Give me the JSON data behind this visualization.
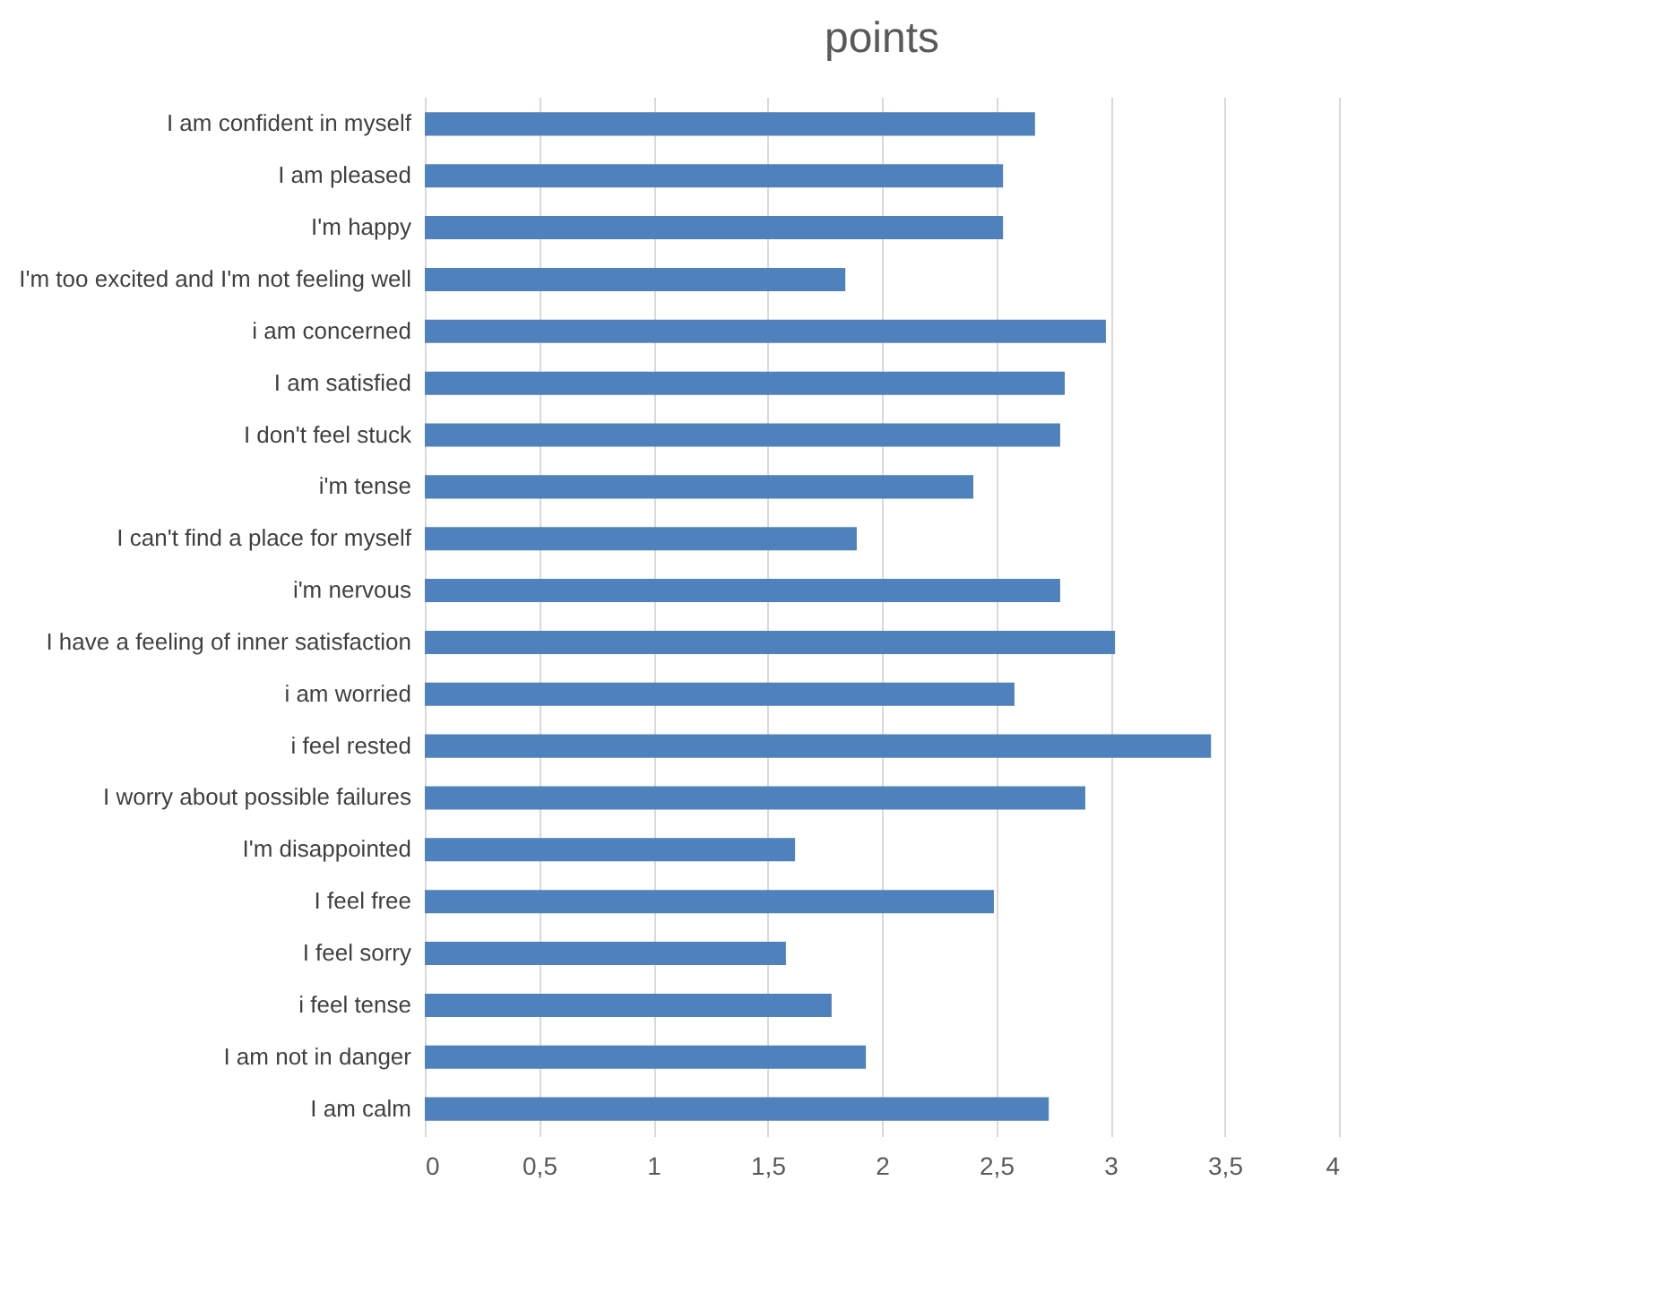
{
  "chart_data": {
    "type": "bar",
    "title": "points",
    "orientation": "horizontal",
    "categories": [
      "I am confident in myself",
      "I am pleased",
      "I'm happy",
      "I'm too excited and I'm not feeling well",
      "i am concerned",
      "I am satisfied",
      "I don't feel stuck",
      "i'm tense",
      "I can't find a place for myself",
      "i'm nervous",
      "I have a feeling of inner satisfaction",
      "i am worried",
      "i feel rested",
      "I worry about possible failures",
      "I'm disappointed",
      "I feel free",
      "I feel sorry",
      "i feel tense",
      "I am not in danger",
      "I am calm"
    ],
    "values": [
      2.67,
      2.53,
      2.53,
      1.84,
      2.98,
      2.8,
      2.78,
      2.4,
      1.89,
      2.78,
      3.02,
      2.58,
      3.44,
      2.89,
      1.62,
      2.49,
      1.58,
      1.78,
      1.93,
      2.73
    ],
    "color": "#4f81bd",
    "xlim": [
      0,
      4
    ],
    "xticks": [
      0,
      {
        "value": 0.5,
        "label": "0,5"
      },
      1,
      {
        "value": 1.5,
        "label": "1,5"
      },
      2,
      {
        "value": 2.5,
        "label": "2,5"
      },
      3,
      {
        "value": 3.5,
        "label": "3,5"
      },
      4
    ],
    "grid": "x"
  }
}
